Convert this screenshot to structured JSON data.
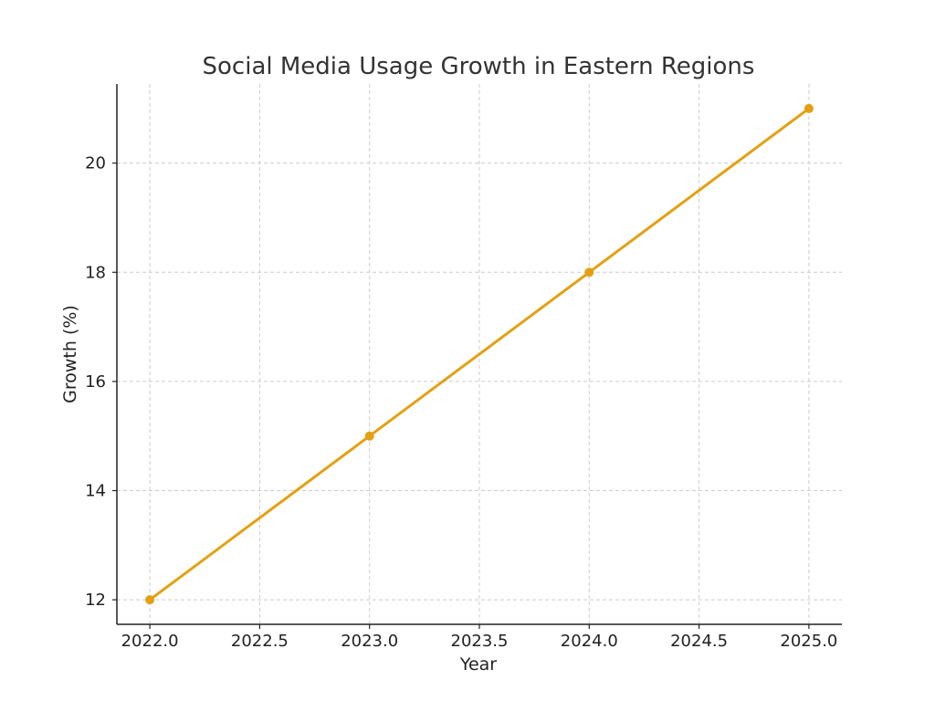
{
  "chart_data": {
    "type": "line",
    "title": "Social Media Usage Growth in Eastern Regions",
    "xlabel": "Year",
    "ylabel": "Growth (%)",
    "xlim": [
      2021.85,
      2025.15
    ],
    "ylim": [
      11.55,
      21.45
    ],
    "x_ticks": [
      2022.0,
      2022.5,
      2023.0,
      2023.5,
      2024.0,
      2024.5,
      2025.0
    ],
    "x_tick_labels": [
      "2022.0",
      "2022.5",
      "2023.0",
      "2023.5",
      "2024.0",
      "2024.5",
      "2025.0"
    ],
    "y_ticks": [
      12,
      14,
      16,
      18,
      20
    ],
    "y_tick_labels": [
      "12",
      "14",
      "16",
      "18",
      "20"
    ],
    "grid": true,
    "series": [
      {
        "x": [
          2022,
          2023,
          2024,
          2025
        ],
        "y": [
          12,
          15,
          18,
          21
        ],
        "color": "#E3A012",
        "marker": "circle"
      }
    ]
  }
}
